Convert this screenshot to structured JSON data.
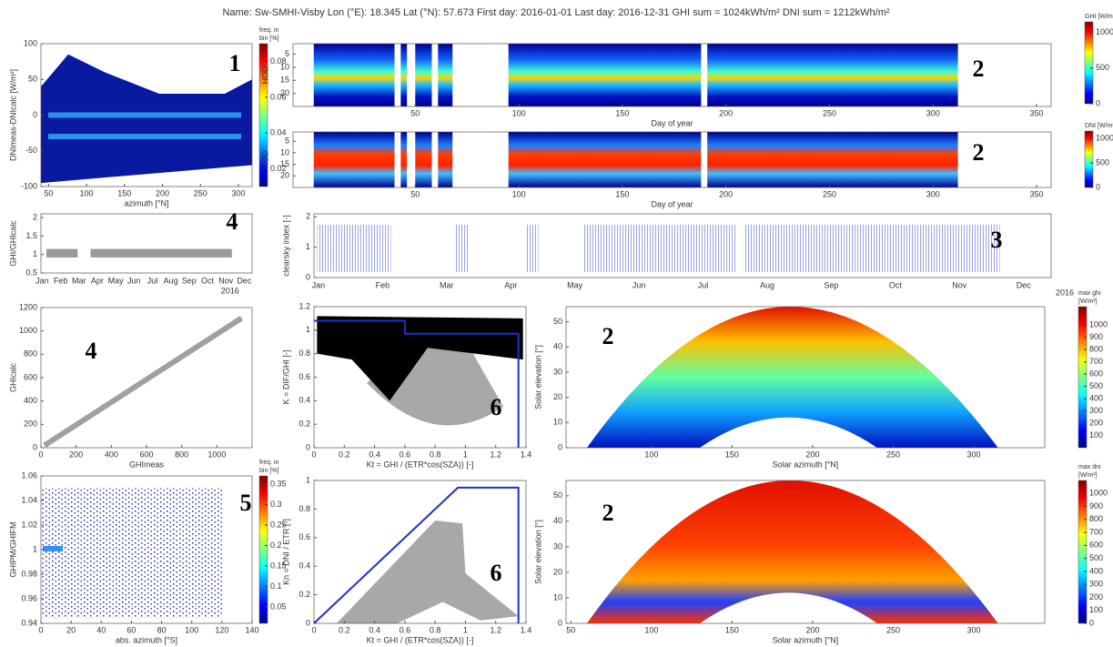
{
  "title": "Name: Sw-SMHI-Visby Lon (°E): 18.345 Lat (°N): 57.673 First day: 2016-01-01 Last day: 2016-12-31 GHI sum = 1024kWh/m² DNI sum = 1212kWh/m²",
  "chart_data": [
    {
      "type": "heatmap",
      "annotation": "1",
      "x_label": "azimuth [°N]",
      "y_label": "DNImeas-DNIcalc [W/m²]",
      "xlim": [
        40,
        318
      ],
      "ylim": [
        -100,
        100
      ],
      "xticks": [
        50,
        100,
        150,
        200,
        250,
        300
      ],
      "yticks": [
        -100,
        -50,
        0,
        50,
        100
      ],
      "colormap": "jet",
      "colorbar": {
        "label": [
          "freq. in",
          "bin [%]"
        ],
        "lim": [
          0.01,
          0.09
        ],
        "ticks": [
          0.02,
          0.04,
          0.06,
          0.08
        ]
      }
    },
    {
      "type": "heatmap",
      "annotation": "2",
      "x_label": "Day of year",
      "y_label": "HOD",
      "xlim": [
        -9,
        357
      ],
      "ylim": [
        1,
        25
      ],
      "y_reversed": true,
      "xticks": [
        50,
        100,
        150,
        200,
        250,
        300,
        350
      ],
      "yticks": [
        5,
        10,
        15,
        20
      ],
      "colormap": "jet",
      "colorbar": {
        "label": [
          "GHI [W/m²]"
        ],
        "lim": [
          0,
          1150
        ],
        "ticks": [
          0,
          500,
          1000
        ]
      }
    },
    {
      "type": "heatmap",
      "annotation": "2",
      "x_label": "Day of year",
      "y_label": "HOD",
      "xlim": [
        -9,
        357
      ],
      "ylim": [
        1,
        25
      ],
      "y_reversed": true,
      "xticks": [
        50,
        100,
        150,
        200,
        250,
        300,
        350
      ],
      "yticks": [
        5,
        10,
        15,
        20
      ],
      "colormap": "jet",
      "colorbar": {
        "label": [
          "DNI [W/m²]"
        ],
        "lim": [
          0,
          1150
        ],
        "ticks": [
          0,
          500,
          1000
        ]
      }
    },
    {
      "type": "scatter",
      "annotation": "3",
      "y_label": "clearsky index [-]",
      "categories": [
        "Jan",
        "Feb",
        "Mar",
        "Apr",
        "May",
        "Jun",
        "Jul",
        "Aug",
        "Sep",
        "Oct",
        "Nov",
        "Dec"
      ],
      "ylim": [
        0,
        2.1
      ],
      "yticks": [
        0,
        1,
        2
      ]
    },
    {
      "type": "scatter",
      "annotation": "4",
      "y_label": "GHI/GHIcalc",
      "categories": [
        "Jan",
        "Feb",
        "Mar",
        "Apr",
        "May",
        "Jun",
        "Jul",
        "Aug",
        "Sep",
        "Oct",
        "Nov",
        "Dec"
      ],
      "x_sublabel": "2016",
      "ylim": [
        0.5,
        2.1
      ],
      "yticks": [
        0.5,
        1,
        1.5,
        2
      ]
    },
    {
      "type": "scatter",
      "annotation": "4",
      "x_label": "GHImeas",
      "y_label": "GHIcalc",
      "xlim": [
        0,
        1200
      ],
      "ylim": [
        0,
        1200
      ],
      "xticks": [
        0,
        200,
        400,
        600,
        800,
        1000
      ],
      "yticks": [
        0,
        200,
        400,
        600,
        800,
        1000,
        1200
      ]
    },
    {
      "type": "heatmap",
      "annotation": "5",
      "x_label": "abs. azimuth [°S]",
      "y_label": "GHIPM/GHIFM",
      "xlim": [
        0,
        140
      ],
      "ylim": [
        0.94,
        1.06
      ],
      "xticks": [
        0,
        20,
        40,
        60,
        80,
        100,
        120,
        140
      ],
      "yticks": [
        0.94,
        0.96,
        0.98,
        1,
        1.02,
        1.04,
        1.06
      ],
      "colormap": "jet",
      "colorbar": {
        "label": [
          "freq. in",
          "bin [%]"
        ],
        "lim": [
          0.01,
          0.37
        ],
        "ticks": [
          0.05,
          0.1,
          0.15,
          0.2,
          0.25,
          0.3,
          0.35
        ]
      }
    },
    {
      "type": "scatter",
      "annotation": "6",
      "x_label": "Kt = GHI / (ETR*cos(SZA)) [-]",
      "y_label": "K = DIF/GHI [-]",
      "xlim": [
        0,
        1.4
      ],
      "ylim": [
        0,
        1.2
      ],
      "xticks": [
        0,
        0.2,
        0.4,
        0.6,
        0.8,
        1,
        1.2,
        1.4
      ],
      "yticks": [
        0,
        0.2,
        0.4,
        0.6,
        0.8,
        1,
        1.2
      ],
      "series": [
        {
          "color": "#1f2fd0",
          "x": [
            0,
            0.6,
            0.6,
            1.35,
            1.35
          ],
          "values": [
            1.08,
            1.08,
            0.97,
            0.97,
            0
          ]
        }
      ]
    },
    {
      "type": "scatter",
      "annotation": "6",
      "x_label": "Kt = GHI / (ETR*cos(SZA)) [-]",
      "y_label": "Kn = DNI / ETR [-]",
      "xlim": [
        0,
        1.4
      ],
      "ylim": [
        0,
        1
      ],
      "xticks": [
        0,
        0.2,
        0.4,
        0.6,
        0.8,
        1,
        1.2,
        1.4
      ],
      "yticks": [
        0,
        0.2,
        0.4,
        0.6,
        0.8,
        1
      ],
      "series": [
        {
          "color": "#1f2fd0",
          "x": [
            0,
            0.95,
            1.35,
            1.35
          ],
          "values": [
            0,
            0.95,
            0.95,
            0
          ]
        }
      ]
    },
    {
      "type": "heatmap",
      "annotation": "2",
      "x_label": "Solar azimuth [°N]",
      "y_label": "Solar elevation [°]",
      "xlim": [
        47,
        344
      ],
      "ylim": [
        0,
        56
      ],
      "xticks": [
        100,
        150,
        200,
        250,
        300
      ],
      "yticks": [
        0,
        10,
        20,
        30,
        40,
        50
      ],
      "colormap": "jet",
      "colorbar": {
        "header": "2016",
        "label": [
          "max ghi",
          "[W/m²]"
        ],
        "lim": [
          0,
          1150
        ],
        "ticks": [
          100,
          200,
          300,
          400,
          500,
          600,
          700,
          800,
          900,
          1000
        ]
      }
    },
    {
      "type": "heatmap",
      "annotation": "2",
      "x_label": "Solar azimuth [°N]",
      "y_label": "Solar elevation [°]",
      "xlim": [
        47,
        344
      ],
      "ylim": [
        0,
        56
      ],
      "xticks": [
        50,
        100,
        150,
        200,
        250,
        300
      ],
      "yticks": [
        0,
        10,
        20,
        30,
        40,
        50
      ],
      "colormap": "jet",
      "colorbar": {
        "label": [
          "max dni",
          "[W/m²]"
        ],
        "lim": [
          0,
          1100
        ],
        "ticks": [
          0,
          100,
          200,
          300,
          400,
          500,
          600,
          700,
          800,
          900,
          1000
        ]
      }
    }
  ]
}
